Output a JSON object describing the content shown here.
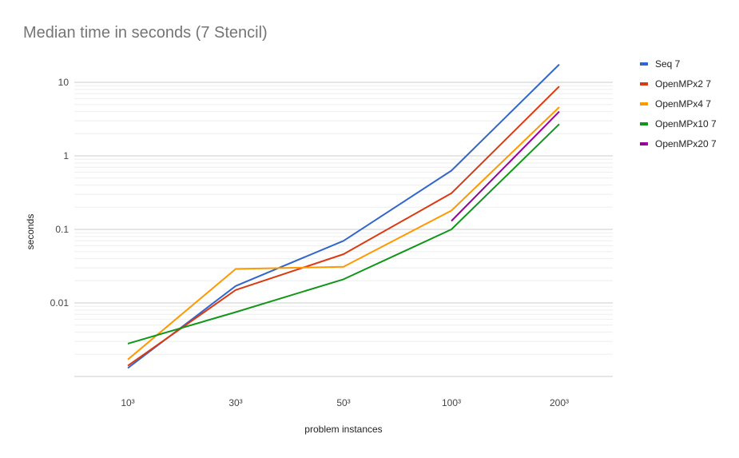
{
  "chart_data": {
    "type": "line",
    "title": "Median time in seconds (7 Stencil)",
    "xlabel": "problem instances",
    "ylabel": "seconds",
    "yscale": "log",
    "ylim": [
      0.001,
      10
    ],
    "categories": [
      "10³",
      "30³",
      "50³",
      "100³",
      "200³"
    ],
    "y_ticks": [
      {
        "value": 10,
        "label": "10"
      },
      {
        "value": 1,
        "label": "1"
      },
      {
        "value": 0.1,
        "label": "0.1"
      },
      {
        "value": 0.01,
        "label": "0.01"
      }
    ],
    "grid": true,
    "legend_position": "right",
    "series": [
      {
        "name": "Seq 7",
        "color": "#3366cc",
        "values": [
          0.0013,
          0.017,
          0.07,
          0.63,
          17.5
        ]
      },
      {
        "name": "OpenMPx2 7",
        "color": "#dc3912",
        "values": [
          0.0014,
          0.015,
          0.046,
          0.31,
          8.8
        ]
      },
      {
        "name": "OpenMPx4 7",
        "color": "#ff9900",
        "values": [
          0.0017,
          0.029,
          0.031,
          0.18,
          4.6
        ]
      },
      {
        "name": "OpenMPx10 7",
        "color": "#109618",
        "values": [
          0.0028,
          0.0075,
          0.021,
          0.1,
          2.7
        ]
      },
      {
        "name": "OpenMPx20 7",
        "color": "#990099",
        "values": [
          null,
          null,
          null,
          0.13,
          4.0
        ]
      }
    ]
  }
}
